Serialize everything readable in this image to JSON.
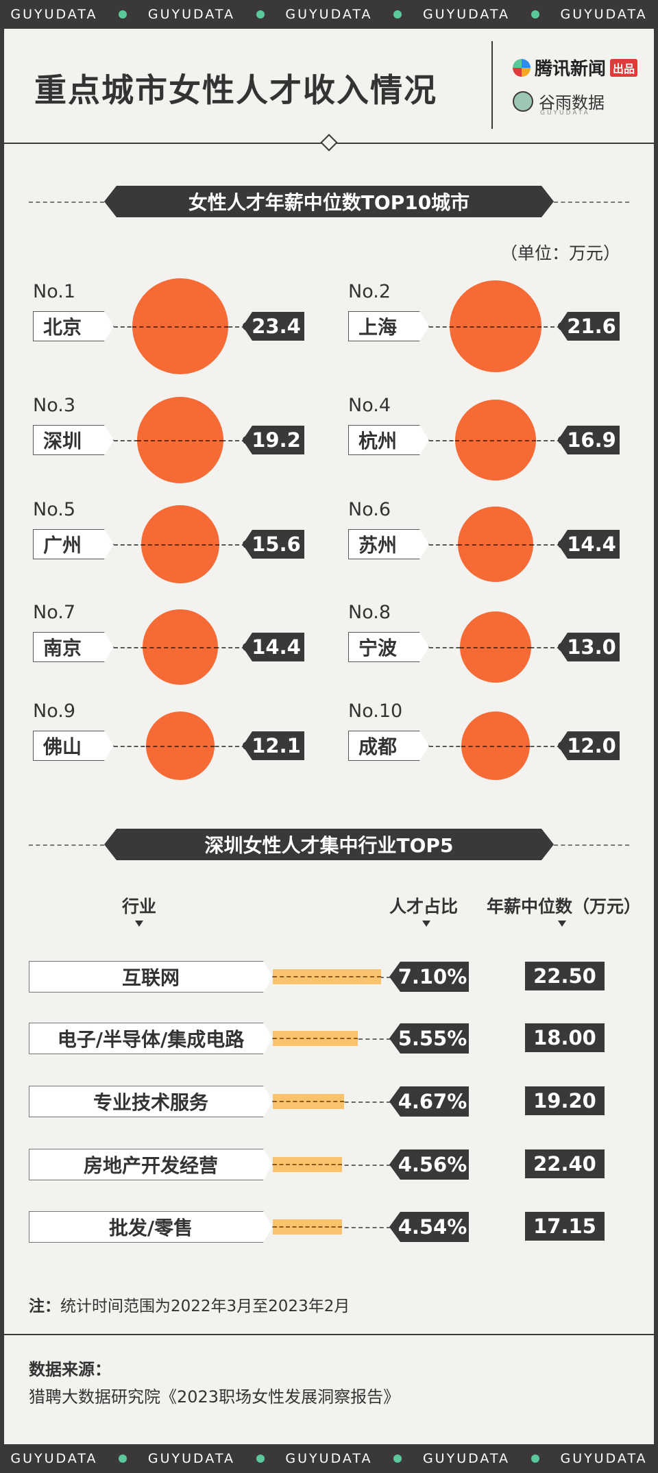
{
  "band_text": "GUYUDATA",
  "header": {
    "title": "重点城市女性人才收入情况",
    "logo_tencent": "腾讯新闻",
    "logo_tencent_badge": "出品",
    "logo_guyu": "谷雨数据",
    "logo_guyu_sub": "GUYUDATA"
  },
  "section1": {
    "title": "女性人才年薪中位数TOP10城市",
    "unit": "（单位：万元）"
  },
  "section2": {
    "title": "深圳女性人才集中行业TOP5",
    "col_industry": "行业",
    "col_share": "人才占比",
    "col_salary": "年薪中位数（万元）"
  },
  "chart_data": [
    {
      "type": "bubble",
      "title": "女性人才年薪中位数TOP10城市",
      "unit": "万元",
      "ranks": [
        "No.1",
        "No.2",
        "No.3",
        "No.4",
        "No.5",
        "No.6",
        "No.7",
        "No.8",
        "No.9",
        "No.10"
      ],
      "categories": [
        "北京",
        "上海",
        "深圳",
        "杭州",
        "广州",
        "苏州",
        "南京",
        "宁波",
        "佛山",
        "成都"
      ],
      "values": [
        "23.4",
        "21.6",
        "19.2",
        "16.9",
        "15.6",
        "14.4",
        "14.4",
        "13.0",
        "12.1",
        "12.0"
      ]
    },
    {
      "type": "bar",
      "title": "深圳女性人才集中行业TOP5",
      "categories": [
        "互联网",
        "电子/半导体/集成电路",
        "专业技术服务",
        "房地产开发经营",
        "批发/零售"
      ],
      "share_percent": [
        7.1,
        5.55,
        4.67,
        4.56,
        4.54
      ],
      "share_labels": [
        "7.10%",
        "5.55%",
        "4.67%",
        "4.56%",
        "4.54%"
      ],
      "salary_labels": [
        "22.50",
        "18.00",
        "19.20",
        "22.40",
        "17.15"
      ],
      "salary": [
        22.5,
        18.0,
        19.2,
        22.4,
        17.15
      ]
    }
  ],
  "footer": {
    "note_label": "注：",
    "note_text": "统计时间范围为2022年3月至2023年2月",
    "source_label": "数据来源：",
    "source_text": "猎聘大数据研究院《2023职场女性发展洞察报告》"
  },
  "colors": {
    "accent": "#f66a36",
    "bar": "#f8c36c",
    "dark": "#3a3838",
    "dot": "#5ac89a"
  }
}
